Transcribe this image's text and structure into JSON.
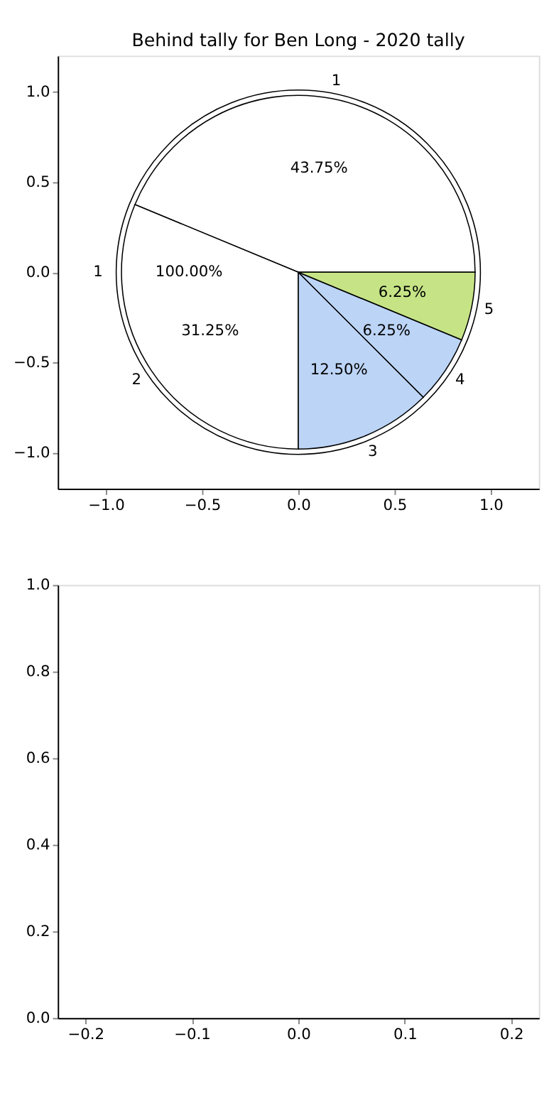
{
  "chart_data": [
    {
      "type": "scatter",
      "title": "Behind tally for Ben Long - 2020 tally",
      "xlim": [
        -1.25,
        1.25
      ],
      "ylim": [
        -1.2,
        1.2
      ],
      "xticks": [
        {
          "value": -1.0,
          "label": "−1.0"
        },
        {
          "value": -0.5,
          "label": "−0.5"
        },
        {
          "value": 0.0,
          "label": "0.0"
        },
        {
          "value": 0.5,
          "label": "0.5"
        },
        {
          "value": 1.0,
          "label": "1.0"
        }
      ],
      "yticks": [
        {
          "value": -1.0,
          "label": "−1.0"
        },
        {
          "value": -0.5,
          "label": "−0.5"
        },
        {
          "value": 0.0,
          "label": "0.0"
        },
        {
          "value": 0.5,
          "label": "0.5"
        },
        {
          "value": 1.0,
          "label": "1.0"
        }
      ]
    },
    {
      "type": "pie",
      "categories": [
        "1",
        "2",
        "3",
        "4",
        "5"
      ],
      "values": [
        43.75,
        31.25,
        12.5,
        6.25,
        6.25
      ],
      "value_labels": [
        "43.75%",
        "31.25%",
        "12.50%",
        "6.25%",
        "6.25%"
      ],
      "colors": [
        "#ffffff",
        "#ffffff",
        "#bcd4f6",
        "#bcd4f6",
        "#c6e486"
      ]
    },
    {
      "type": "pie",
      "categories": [
        "1"
      ],
      "values": [
        100
      ],
      "value_labels": [
        "100.00%"
      ],
      "colors": [
        "#ffffff"
      ]
    },
    {
      "type": "scatter",
      "xlim": [
        -0.226,
        0.226
      ],
      "ylim": [
        0,
        1
      ],
      "xticks": [
        {
          "value": -0.2,
          "label": "−0.2"
        },
        {
          "value": -0.1,
          "label": "−0.1"
        },
        {
          "value": 0.0,
          "label": "0.0"
        },
        {
          "value": 0.1,
          "label": "0.1"
        },
        {
          "value": 0.2,
          "label": "0.2"
        }
      ],
      "yticks": [
        {
          "value": 0.0,
          "label": "0.0"
        },
        {
          "value": 0.2,
          "label": "0.2"
        },
        {
          "value": 0.4,
          "label": "0.4"
        },
        {
          "value": 0.6,
          "label": "0.6"
        },
        {
          "value": 0.8,
          "label": "0.8"
        },
        {
          "value": 1.0,
          "label": "1.0"
        }
      ]
    }
  ]
}
